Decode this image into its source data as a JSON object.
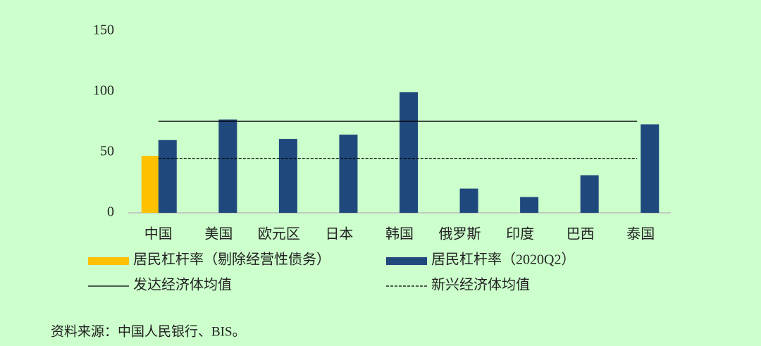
{
  "chart_data": {
    "type": "bar",
    "categories": [
      "中国",
      "美国",
      "欧元区",
      "日本",
      "韩国",
      "俄罗斯",
      "印度",
      "巴西",
      "泰国"
    ],
    "series": [
      {
        "name": "居民杠杆率（剔除经营性债务）",
        "color": "#ffc000",
        "values": [
          47,
          null,
          null,
          null,
          null,
          null,
          null,
          null,
          null
        ]
      },
      {
        "name": "居民杠杆率（2020Q2）",
        "color": "#1f497d",
        "values": [
          60,
          77,
          61,
          64.5,
          99.5,
          20,
          13,
          31,
          73
        ]
      }
    ],
    "reference_lines": [
      {
        "name": "发达经济体均值",
        "value": 75.5,
        "style": "solid",
        "color": "#000000"
      },
      {
        "name": "新兴经济体均值",
        "value": 45,
        "style": "dashed",
        "color": "#000000"
      }
    ],
    "ylim": [
      0,
      150
    ],
    "yticks": [
      0,
      50,
      100,
      150
    ],
    "grid": false,
    "source": "资料来源：中国人民银行、BIS。"
  }
}
